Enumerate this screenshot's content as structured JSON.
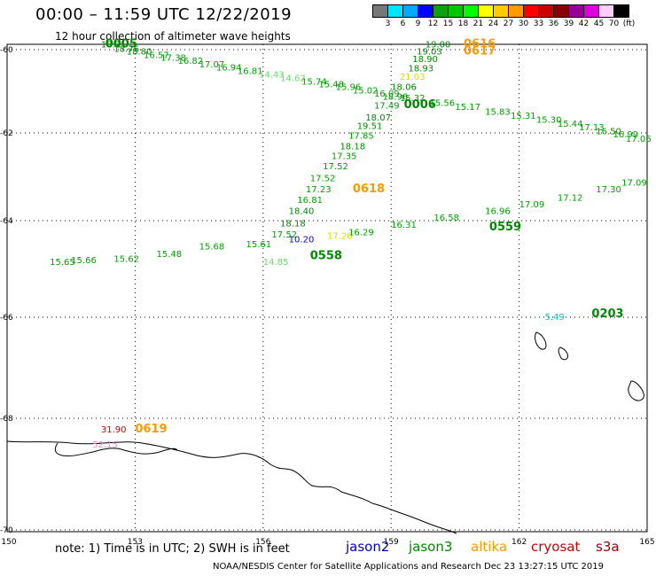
{
  "header": {
    "title": "00:00 – 11:59 UTC 12/22/2019",
    "subtitle": "12 hour collection of altimeter wave heights"
  },
  "colorbar": {
    "colors": [
      "#777777",
      "#00e5ff",
      "#00aaff",
      "#0000ff",
      "#0fa010",
      "#00c800",
      "#00ff00",
      "#ffff00",
      "#ffcc00",
      "#ff9900",
      "#ff0000",
      "#cc0000",
      "#880000",
      "#990099",
      "#dd00dd",
      "#ffccff",
      "#000000"
    ],
    "labels": [
      "3",
      "6",
      "9",
      "12",
      "15",
      "18",
      "21",
      "24",
      "27",
      "30",
      "33",
      "36",
      "39",
      "42",
      "45",
      "70",
      "(ft)"
    ]
  },
  "axes": {
    "lon_ticks": [
      "150",
      "153",
      "156",
      "159",
      "162",
      "165"
    ],
    "lat_ticks": [
      "-60",
      "-62",
      "-64",
      "-66",
      "-68",
      "-70"
    ],
    "lon_range": [
      150,
      165
    ],
    "lat_range": [
      -70,
      -59.8
    ]
  },
  "satellites": [
    {
      "name": "jason2",
      "color": "#0000cc"
    },
    {
      "name": "jason3",
      "color": "#008800"
    },
    {
      "name": "altika",
      "color": "#ff9900"
    },
    {
      "name": "cryosat",
      "color": "#cc0000"
    },
    {
      "name": "s3a",
      "color": "#990000"
    }
  ],
  "note": "note: 1) Time is in UTC; 2) SWH is in feet",
  "credit": "NOAA/NESDIS Center for Satellite Applications and Research    Dec 23 13:27:15 UTC 2019",
  "track_times": [
    {
      "text": "0005",
      "lon": 152.3,
      "lat": -59.95,
      "color": "#008800"
    },
    {
      "text": "0616",
      "lon": 160.7,
      "lat": -59.95,
      "color": "#ff9900"
    },
    {
      "text": "0617",
      "lon": 160.7,
      "lat": -60.12,
      "color": "#ff9900"
    },
    {
      "text": "0006",
      "lon": 159.3,
      "lat": -61.4,
      "color": "#008800"
    },
    {
      "text": "0618",
      "lon": 158.1,
      "lat": -63.35,
      "color": "#ff9900"
    },
    {
      "text": "0559",
      "lon": 161.3,
      "lat": -64.2,
      "color": "#008800"
    },
    {
      "text": "0558",
      "lon": 157.1,
      "lat": -64.8,
      "color": "#008800"
    },
    {
      "text": "0203",
      "lon": 163.7,
      "lat": -66.0,
      "color": "#008800"
    },
    {
      "text": "0619",
      "lon": 153.0,
      "lat": -68.25,
      "color": "#ff9900"
    }
  ],
  "wave_heights": [
    {
      "value": "18.21",
      "lon": 152.2,
      "lat": -59.95,
      "color": "#008800"
    },
    {
      "value": "18.76",
      "lon": 152.5,
      "lat": -60.05,
      "color": "#008800"
    },
    {
      "value": "18.80",
      "lon": 152.8,
      "lat": -60.12,
      "color": "#008800"
    },
    {
      "value": "16.57",
      "lon": 153.2,
      "lat": -60.2,
      "color": "#00a000"
    },
    {
      "value": "17.38",
      "lon": 153.6,
      "lat": -60.27,
      "color": "#00a000"
    },
    {
      "value": "16.82",
      "lon": 154.0,
      "lat": -60.34,
      "color": "#00a000"
    },
    {
      "value": "17.07",
      "lon": 154.5,
      "lat": -60.43,
      "color": "#00a000"
    },
    {
      "value": "16.94",
      "lon": 154.9,
      "lat": -60.5,
      "color": "#00a000"
    },
    {
      "value": "16.81",
      "lon": 155.4,
      "lat": -60.58,
      "color": "#00a000"
    },
    {
      "value": "14.43",
      "lon": 155.9,
      "lat": -60.67,
      "color": "#66dd66"
    },
    {
      "value": "14.62",
      "lon": 156.4,
      "lat": -60.75,
      "color": "#66dd66"
    },
    {
      "value": "15.74",
      "lon": 156.9,
      "lat": -60.84,
      "color": "#00a000"
    },
    {
      "value": "15.48",
      "lon": 157.3,
      "lat": -60.9,
      "color": "#00a000"
    },
    {
      "value": "15.96",
      "lon": 157.7,
      "lat": -60.97,
      "color": "#00a000"
    },
    {
      "value": "15.02",
      "lon": 158.1,
      "lat": -61.05,
      "color": "#00a000"
    },
    {
      "value": "16.09",
      "lon": 158.6,
      "lat": -61.13,
      "color": "#00a000"
    },
    {
      "value": "15.32",
      "lon": 159.2,
      "lat": -61.23,
      "color": "#00a000"
    },
    {
      "value": "15.56",
      "lon": 159.9,
      "lat": -61.35,
      "color": "#00a000"
    },
    {
      "value": "15.17",
      "lon": 160.5,
      "lat": -61.45,
      "color": "#00a000"
    },
    {
      "value": "15.83",
      "lon": 161.2,
      "lat": -61.56,
      "color": "#00a000"
    },
    {
      "value": "15.31",
      "lon": 161.8,
      "lat": -61.66,
      "color": "#00a000"
    },
    {
      "value": "15.30",
      "lon": 162.4,
      "lat": -61.75,
      "color": "#00a000"
    },
    {
      "value": "15.44",
      "lon": 162.9,
      "lat": -61.85,
      "color": "#00a000"
    },
    {
      "value": "17.13",
      "lon": 163.4,
      "lat": -61.94,
      "color": "#00a000"
    },
    {
      "value": "16.50",
      "lon": 163.8,
      "lat": -62.03,
      "color": "#00a000"
    },
    {
      "value": "16.99",
      "lon": 164.2,
      "lat": -62.1,
      "color": "#00a000"
    },
    {
      "value": "19.00",
      "lon": 159.8,
      "lat": -59.95,
      "color": "#008800"
    },
    {
      "value": "19.03",
      "lon": 159.6,
      "lat": -60.12,
      "color": "#008800"
    },
    {
      "value": "18.90",
      "lon": 159.5,
      "lat": -60.3,
      "color": "#008800"
    },
    {
      "value": "18.93",
      "lon": 159.4,
      "lat": -60.52,
      "color": "#008800"
    },
    {
      "value": "21.03",
      "lon": 159.2,
      "lat": -60.72,
      "color": "#dddd00"
    },
    {
      "value": "18.06",
      "lon": 159.0,
      "lat": -60.97,
      "color": "#008800"
    },
    {
      "value": "18.96",
      "lon": 158.8,
      "lat": -61.2,
      "color": "#008800"
    },
    {
      "value": "17.49",
      "lon": 158.6,
      "lat": -61.42,
      "color": "#00a000"
    },
    {
      "value": "18.07",
      "lon": 158.4,
      "lat": -61.7,
      "color": "#008800"
    },
    {
      "value": "19.51",
      "lon": 158.2,
      "lat": -61.9,
      "color": "#008800"
    },
    {
      "value": "17.85",
      "lon": 158.0,
      "lat": -62.13,
      "color": "#00a000"
    },
    {
      "value": "18.18",
      "lon": 157.8,
      "lat": -62.37,
      "color": "#008800"
    },
    {
      "value": "17.35",
      "lon": 157.6,
      "lat": -62.6,
      "color": "#00a000"
    },
    {
      "value": "17.52",
      "lon": 157.4,
      "lat": -62.83,
      "color": "#00a000"
    },
    {
      "value": "17.52",
      "lon": 157.1,
      "lat": -63.1,
      "color": "#00a000"
    },
    {
      "value": "17.23",
      "lon": 157.0,
      "lat": -63.35,
      "color": "#00a000"
    },
    {
      "value": "16.81",
      "lon": 156.8,
      "lat": -63.6,
      "color": "#00a000"
    },
    {
      "value": "18.40",
      "lon": 156.6,
      "lat": -63.85,
      "color": "#008800"
    },
    {
      "value": "18.18",
      "lon": 156.4,
      "lat": -64.12,
      "color": "#008800"
    },
    {
      "value": "17.52",
      "lon": 156.2,
      "lat": -64.35,
      "color": "#00a000"
    },
    {
      "value": "14.85",
      "lon": 156.0,
      "lat": -64.92,
      "color": "#66dd66"
    },
    {
      "value": "10.20",
      "lon": 156.6,
      "lat": -64.45,
      "color": "#0000cc"
    },
    {
      "value": "17.20",
      "lon": 157.5,
      "lat": -64.38,
      "color": "#dddd00"
    },
    {
      "value": "15.65",
      "lon": 151.0,
      "lat": -64.92,
      "color": "#00a000"
    },
    {
      "value": "15.66",
      "lon": 151.5,
      "lat": -64.88,
      "color": "#00a000"
    },
    {
      "value": "15.62",
      "lon": 152.5,
      "lat": -64.85,
      "color": "#00a000"
    },
    {
      "value": "15.48",
      "lon": 153.5,
      "lat": -64.75,
      "color": "#00a000"
    },
    {
      "value": "15.68",
      "lon": 154.5,
      "lat": -64.6,
      "color": "#00a000"
    },
    {
      "value": "15.61",
      "lon": 155.6,
      "lat": -64.55,
      "color": "#00a000"
    },
    {
      "value": "16.29",
      "lon": 158.0,
      "lat": -64.3,
      "color": "#00a000"
    },
    {
      "value": "16.31",
      "lon": 159.0,
      "lat": -64.15,
      "color": "#00a000"
    },
    {
      "value": "16.58",
      "lon": 160.0,
      "lat": -64.0,
      "color": "#00a000"
    },
    {
      "value": "16.96",
      "lon": 161.2,
      "lat": -63.85,
      "color": "#00a000"
    },
    {
      "value": "17.09",
      "lon": 162.0,
      "lat": -63.7,
      "color": "#00a000"
    },
    {
      "value": "17.12",
      "lon": 162.9,
      "lat": -63.55,
      "color": "#00a000"
    },
    {
      "value": "17.30",
      "lon": 163.8,
      "lat": -63.35,
      "color": "#00a000"
    },
    {
      "value": "17.09",
      "lon": 164.4,
      "lat": -63.2,
      "color": "#00a000"
    },
    {
      "value": "17.06",
      "lon": 164.5,
      "lat": -62.2,
      "color": "#00a000"
    },
    {
      "value": "5.49",
      "lon": 162.6,
      "lat": -66.05,
      "color": "#00cccc"
    },
    {
      "value": "31.90",
      "lon": 152.2,
      "lat": -68.25,
      "color": "#cc0000"
    },
    {
      "value": "52.15",
      "lon": 152.0,
      "lat": -68.52,
      "color": "#ff88cc"
    }
  ]
}
